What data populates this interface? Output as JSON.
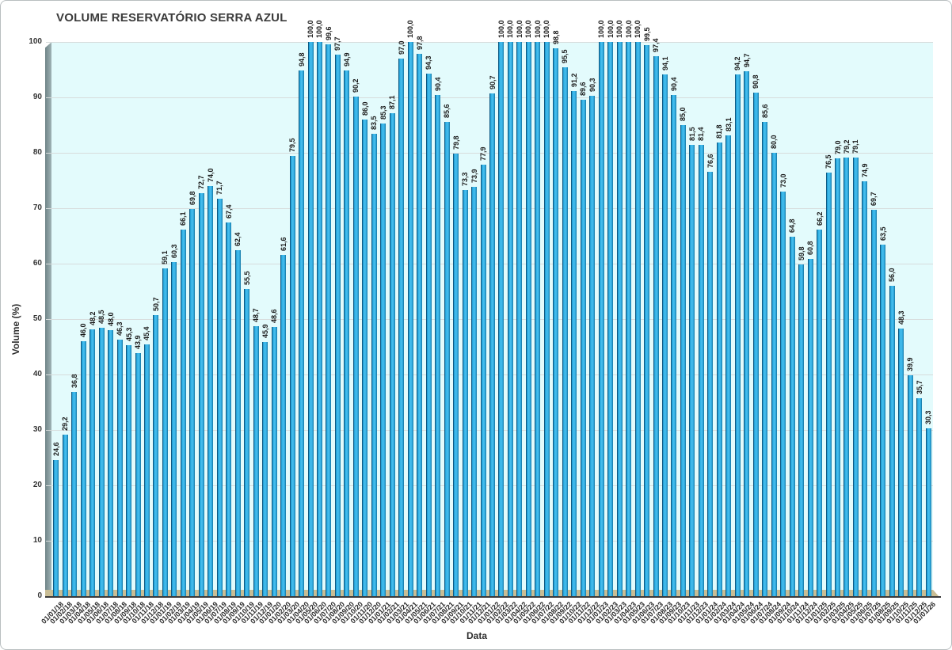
{
  "chart_data": {
    "type": "bar",
    "title": "VOLUME RESERVATÓRIO SERRA AZUL",
    "xlabel": "Data",
    "ylabel": "Volume (%)",
    "ylim": [
      0,
      100
    ],
    "ytick_interval": 10,
    "yticks": [
      0,
      10,
      20,
      30,
      40,
      50,
      60,
      70,
      80,
      90,
      100
    ],
    "grid": true,
    "legend_position": "none",
    "value_labels": "rotated-90-above-bars, decimal comma",
    "bar_color": "#2fabdf",
    "bar_edge_color": "#0e5a84",
    "plot_bg_color": "#e3fbfc",
    "gridline_color": "#d7dcdc",
    "floor_color": "#c9bd94",
    "wall_color": "#83999c",
    "categories": [
      "01/01/18",
      "01/02/18",
      "01/03/18",
      "01/04/18",
      "01/05/18",
      "01/06/18",
      "01/07/18",
      "01/08/18",
      "01/09/18",
      "01/10/18",
      "01/11/18",
      "01/12/18",
      "01/01/19",
      "01/02/19",
      "01/03/19",
      "01/04/19",
      "01/05/19",
      "01/06/19",
      "01/07/19",
      "01/08/19",
      "01/09/19",
      "01/10/19",
      "01/11/19",
      "01/12/19",
      "01/01/20",
      "01/02/20",
      "01/03/20",
      "01/04/20",
      "01/05/20",
      "01/06/20",
      "01/07/20",
      "01/08/20",
      "01/09/20",
      "01/10/20",
      "01/11/20",
      "01/12/20",
      "01/01/21",
      "01/02/21",
      "01/03/21",
      "01/04/21",
      "01/05/21",
      "01/06/21",
      "01/07/21",
      "01/08/21",
      "01/09/21",
      "01/10/21",
      "01/11/21",
      "01/12/21",
      "01/01/22",
      "01/02/22",
      "01/03/22",
      "01/04/22",
      "01/05/22",
      "01/06/22",
      "01/07/22",
      "01/08/22",
      "01/09/22",
      "01/10/22",
      "01/11/22",
      "01/12/22",
      "01/01/23",
      "01/02/23",
      "01/03/23",
      "01/04/23",
      "01/05/23",
      "01/06/23",
      "01/07/23",
      "01/08/23",
      "01/09/23",
      "01/10/23",
      "01/11/23",
      "01/12/23",
      "01/01/24",
      "01/02/24",
      "01/03/24",
      "01/04/24",
      "01/05/24",
      "01/06/24",
      "01/07/24",
      "01/08/24",
      "01/09/24",
      "01/10/24",
      "01/11/24",
      "01/12/24",
      "01/01/25",
      "01/02/25",
      "01/03/25",
      "01/04/25",
      "01/05/25",
      "01/06/25",
      "01/07/25",
      "01/08/25",
      "01/09/25",
      "01/10/25",
      "01/11/25",
      "01/12/25",
      "01/01/26"
    ],
    "values": [
      24.6,
      29.2,
      36.8,
      46.0,
      48.2,
      48.5,
      48.0,
      46.3,
      45.3,
      43.9,
      45.4,
      50.7,
      59.1,
      60.3,
      66.1,
      69.8,
      72.7,
      74.0,
      71.7,
      67.4,
      62.4,
      55.5,
      48.7,
      45.9,
      48.6,
      61.6,
      79.5,
      94.8,
      100.0,
      100.0,
      99.6,
      97.7,
      94.9,
      90.2,
      86.0,
      83.5,
      85.3,
      87.1,
      97.0,
      100.0,
      97.8,
      94.3,
      90.4,
      85.6,
      79.8,
      73.3,
      73.9,
      77.9,
      90.7,
      100.0,
      100.0,
      100.0,
      100.0,
      100.0,
      100.0,
      98.8,
      95.5,
      91.2,
      89.6,
      90.3,
      100.0,
      100.0,
      100.0,
      100.0,
      100.0,
      99.5,
      97.4,
      94.1,
      90.4,
      85.0,
      81.5,
      81.4,
      76.6,
      81.8,
      83.1,
      94.2,
      94.7,
      90.8,
      85.6,
      80.0,
      73.0,
      64.8,
      59.8,
      60.8,
      66.2,
      76.5,
      79.0,
      79.2,
      79.1,
      74.9,
      69.7,
      63.5,
      56.0,
      48.3,
      39.9,
      35.7,
      30.3
    ]
  }
}
